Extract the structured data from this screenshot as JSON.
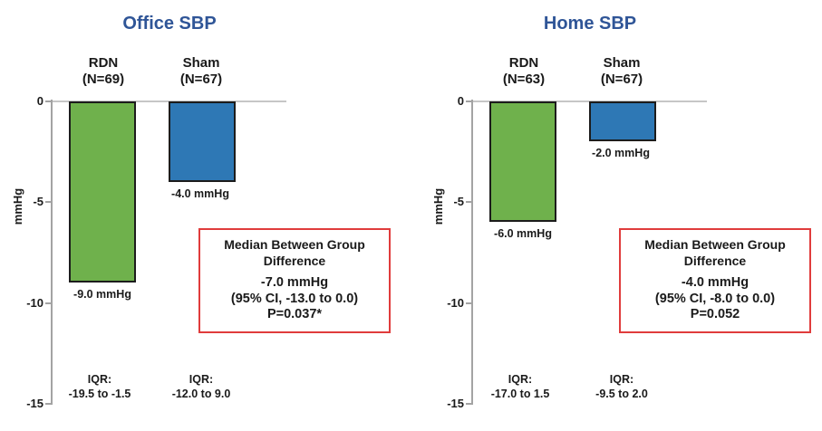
{
  "colors": {
    "title": "#2f5597",
    "rdn_bar": "#6fb14c",
    "sham_bar": "#2e78b5",
    "box_border": "#e03c3c",
    "axis": "#a3a3a3",
    "text": "#1a1a1a"
  },
  "chart_data": [
    {
      "type": "bar",
      "title": "Office SBP",
      "ylabel": "mmHg",
      "ylim": [
        -15,
        0
      ],
      "yticks": [
        "0",
        "-5",
        "-10",
        "-15"
      ],
      "grid": "off",
      "categories": [
        "RDN",
        "Sham"
      ],
      "bars": [
        {
          "group": "RDN",
          "n_label": "(N=69)",
          "value": -9.0,
          "value_label": "-9.0 mmHg",
          "iqr_label": "IQR:",
          "iqr_range": "-19.5 to -1.5",
          "color_key": "rdn"
        },
        {
          "group": "Sham",
          "n_label": "(N=67)",
          "value": -4.0,
          "value_label": "-4.0 mmHg",
          "iqr_label": "IQR:",
          "iqr_range": "-12.0 to 9.0",
          "color_key": "sham"
        }
      ],
      "annotation": {
        "heading_line1": "Median Between Group",
        "heading_line2": "Difference",
        "value": "-7.0 mmHg",
        "ci": "(95% CI, -13.0 to 0.0)",
        "p": "P=0.037*"
      }
    },
    {
      "type": "bar",
      "title": "Home SBP",
      "ylabel": "mmHg",
      "ylim": [
        -15,
        0
      ],
      "yticks": [
        "0",
        "-5",
        "-10",
        "-15"
      ],
      "grid": "off",
      "categories": [
        "RDN",
        "Sham"
      ],
      "bars": [
        {
          "group": "RDN",
          "n_label": "(N=63)",
          "value": -6.0,
          "value_label": "-6.0 mmHg",
          "iqr_label": "IQR:",
          "iqr_range": "-17.0 to 1.5",
          "color_key": "rdn"
        },
        {
          "group": "Sham",
          "n_label": "(N=67)",
          "value": -2.0,
          "value_label": "-2.0 mmHg",
          "iqr_label": "IQR:",
          "iqr_range": "-9.5 to 2.0",
          "color_key": "sham"
        }
      ],
      "annotation": {
        "heading_line1": "Median Between Group",
        "heading_line2": "Difference",
        "value": "-4.0 mmHg",
        "ci": "(95% CI, -8.0 to 0.0)",
        "p": "P=0.052"
      }
    }
  ]
}
